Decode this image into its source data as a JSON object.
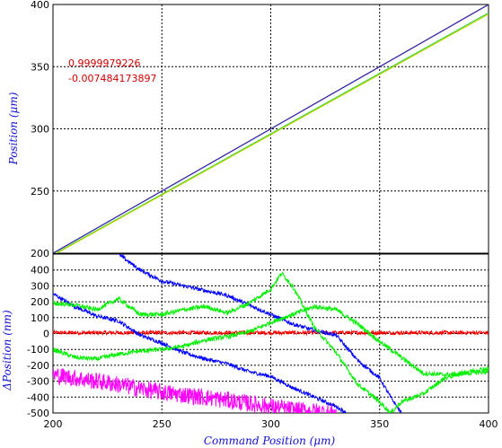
{
  "chart_data": [
    {
      "type": "line",
      "ylabel": "Position (μm)",
      "xlim": [
        200,
        400
      ],
      "ylim": [
        200,
        400
      ],
      "xticks": [
        200,
        250,
        300,
        350,
        400
      ],
      "yticks": [
        250,
        300,
        350,
        400
      ],
      "ytick_labels": [
        "250",
        "300",
        "350",
        "400"
      ],
      "bottom_tick_label": "200",
      "grid": true,
      "annotations": [
        "0.9999979226",
        "-0.007484173897"
      ],
      "colors": {
        "line_main": "#7a1040",
        "line_fit": "#2a2ab0",
        "line_low": "#c8d400",
        "line_low2": "#30d030",
        "annot": "#d00000"
      },
      "series": [
        {
          "color": "#7a1040",
          "x": [
            200,
            400
          ],
          "y": [
            200,
            400
          ]
        },
        {
          "color": "#2a2ab0",
          "x": [
            200,
            400
          ],
          "y": [
            199.9,
            399.9
          ]
        },
        {
          "color": "#30d030",
          "x": [
            200,
            400
          ],
          "y": [
            198.8,
            393.2
          ]
        },
        {
          "color": "#c8d400",
          "x": [
            200,
            400
          ],
          "y": [
            198.3,
            392.2
          ]
        }
      ]
    },
    {
      "type": "line",
      "xlabel": "Command Position (μm)",
      "ylabel": "ΔPosition (nm)",
      "xlim": [
        200,
        400
      ],
      "ylim": [
        -500,
        500
      ],
      "xticks": [
        200,
        250,
        300,
        350,
        400
      ],
      "xtick_labels": [
        "200",
        "250",
        "300",
        "350",
        "400"
      ],
      "yticks": [
        -500,
        -400,
        -300,
        -200,
        -100,
        0,
        100,
        200,
        300,
        400,
        500
      ],
      "ytick_labels": [
        "-500",
        "-400",
        "-300",
        "-200",
        "-100",
        "0",
        "100",
        "200",
        "300",
        "400"
      ],
      "grid": true,
      "series": [
        {
          "color": "#ff0000",
          "noise": 12,
          "x": [
            200,
            400
          ],
          "y": [
            5,
            5
          ]
        },
        {
          "color": "#0000ff",
          "noise": 12,
          "x": [
            200,
            210,
            220,
            230,
            240,
            250,
            260,
            270,
            280,
            290,
            300,
            310,
            320,
            330,
            335
          ],
          "y": [
            250,
            170,
            110,
            80,
            -10,
            -60,
            -120,
            -160,
            -190,
            -240,
            -270,
            -340,
            -400,
            -460,
            -500
          ]
        },
        {
          "color": "#0000ff",
          "noise": 12,
          "x": [
            230,
            240,
            250,
            260,
            270,
            280,
            290,
            300,
            310,
            320,
            330,
            340,
            350,
            355,
            360
          ],
          "y": [
            500,
            400,
            330,
            300,
            270,
            240,
            180,
            120,
            60,
            20,
            -10,
            -170,
            -280,
            -400,
            -500
          ]
        },
        {
          "color": "#00f000",
          "noise": 14,
          "x": [
            200,
            210,
            220,
            230,
            240,
            250,
            260,
            270,
            280,
            290,
            300,
            310,
            320,
            330,
            340,
            350,
            360,
            370,
            380,
            390,
            400
          ],
          "y": [
            -100,
            -150,
            -160,
            -130,
            -110,
            -100,
            -80,
            -40,
            -20,
            10,
            70,
            120,
            170,
            150,
            60,
            -50,
            -150,
            -250,
            -260,
            -250,
            -240
          ]
        },
        {
          "color": "#00f000",
          "noise": 14,
          "x": [
            200,
            210,
            220,
            230,
            240,
            250,
            260,
            270,
            280,
            290,
            300,
            305,
            310,
            320,
            330,
            340,
            350,
            355,
            360,
            370,
            380,
            390,
            400
          ],
          "y": [
            190,
            180,
            150,
            220,
            120,
            120,
            150,
            170,
            130,
            190,
            280,
            380,
            300,
            40,
            -120,
            -320,
            -430,
            -500,
            -430,
            -380,
            -280,
            -240,
            -220
          ]
        },
        {
          "color": "#ff00ff",
          "noise": 55,
          "x": [
            200,
            225,
            250,
            275,
            300,
            310,
            330
          ],
          "y": [
            -260,
            -310,
            -370,
            -410,
            -460,
            -480,
            -500
          ]
        }
      ]
    }
  ]
}
